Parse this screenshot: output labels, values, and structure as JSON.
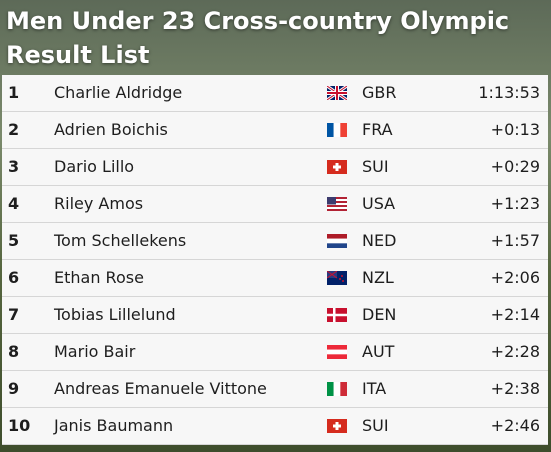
{
  "header": {
    "title_lines": [
      "Men Under 23 Cross-country Olympic",
      "Result List"
    ]
  },
  "table": {
    "rows": [
      [
        "1",
        "Charlie Aldridge",
        "GBR",
        "1:13:53"
      ],
      [
        "2",
        "Adrien Boichis",
        "FRA",
        "+0:13"
      ],
      [
        "3",
        "Dario Lillo",
        "SUI",
        "+0:29"
      ],
      [
        "4",
        "Riley Amos",
        "USA",
        "+1:23"
      ],
      [
        "5",
        "Tom Schellekens",
        "NED",
        "+1:57"
      ],
      [
        "6",
        "Ethan Rose",
        "NZL",
        "+2:06"
      ],
      [
        "7",
        "Tobias Lillelund",
        "DEN",
        "+2:14"
      ],
      [
        "8",
        "Mario Bair",
        "AUT",
        "+2:28"
      ],
      [
        "9",
        "Andreas Emanuele Vittone",
        "ITA",
        "+2:38"
      ],
      [
        "10",
        "Janis Baumann",
        "SUI",
        "+2:46"
      ]
    ]
  }
}
